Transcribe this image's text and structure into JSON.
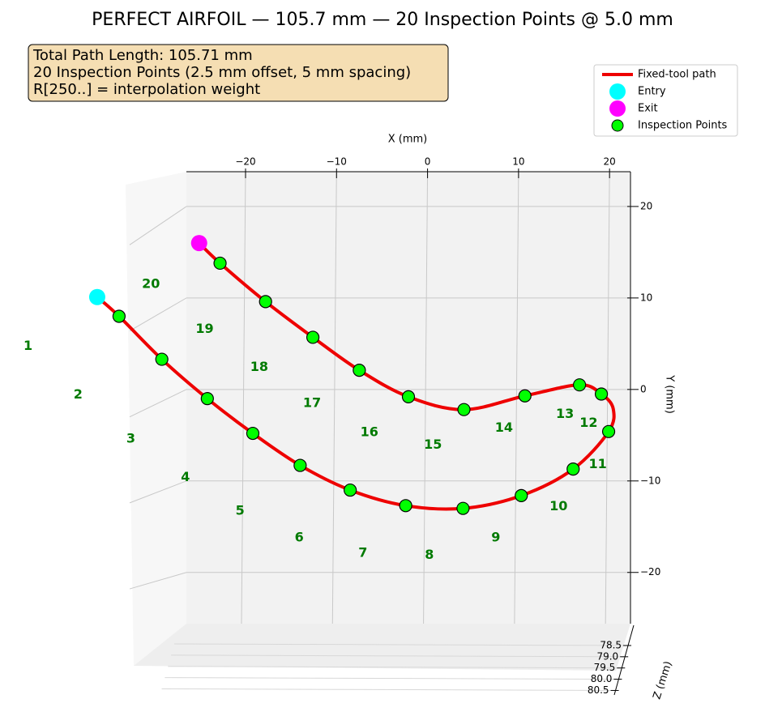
{
  "chart_data": {
    "type": "line3d",
    "title": "PERFECT AIRFOIL — 105.7 mm — 20 Inspection Points @ 5.0 mm",
    "annotation_lines": [
      "Total Path Length: 105.71 mm",
      "20 Inspection Points (2.5 mm offset, 5 mm spacing)",
      "R[250..] = interpolation weight"
    ],
    "xlabel": "X (mm)",
    "ylabel": "Y (mm)",
    "zlabel": "Z (mm)",
    "xlim": [
      -26.5,
      22.3
    ],
    "ylim": [
      -25.6,
      23.8
    ],
    "zlim": [
      77.6,
      80.7
    ],
    "xticks": [
      {
        "value": -20,
        "label": "−20"
      },
      {
        "value": -10,
        "label": "−10"
      },
      0,
      10,
      20
    ],
    "yticks": [
      {
        "value": -20,
        "label": "−20"
      },
      {
        "value": -10,
        "label": "−10"
      },
      0,
      10,
      20
    ],
    "zticks": [
      78.5,
      {
        "value": 79.0,
        "label": "79.0"
      },
      79.5,
      {
        "value": 80.0,
        "label": "80.0"
      },
      80.5
    ],
    "grid": true,
    "legend": "upper right",
    "series": [
      {
        "name": "Fixed-tool path",
        "color": "#ee0000",
        "x": [
          -36.3,
          -33.9,
          -29.2,
          -24.2,
          -19.2,
          -14.0,
          -8.5,
          -2.4,
          3.9,
          10.3,
          16.0,
          19.9,
          20.4,
          19.1,
          16.7,
          10.7,
          4.0,
          -2.1,
          -7.5,
          -12.6,
          -17.8,
          -22.8,
          -25.1
        ],
        "y": [
          10.1,
          8.0,
          3.3,
          -1.0,
          -4.8,
          -8.3,
          -11.0,
          -12.7,
          -13.0,
          -11.6,
          -8.7,
          -4.6,
          -2.1,
          -0.5,
          0.5,
          -0.7,
          -2.2,
          -0.8,
          2.1,
          5.7,
          9.6,
          13.8,
          16.0
        ]
      },
      {
        "name": "Entry",
        "color": "#00ffff",
        "x": [
          -36.3
        ],
        "y": [
          10.1
        ]
      },
      {
        "name": "Exit",
        "color": "#ff00ff",
        "x": [
          -25.1
        ],
        "y": [
          16.0
        ]
      },
      {
        "name": "Inspection Points",
        "color": "#00ff00",
        "label_color": "#007a00",
        "x": [
          -33.9,
          -29.2,
          -24.2,
          -19.2,
          -14.0,
          -8.5,
          -2.4,
          3.9,
          10.3,
          16.0,
          19.9,
          19.1,
          16.7,
          10.7,
          4.0,
          -2.1,
          -7.5,
          -12.6,
          -17.8,
          -22.8
        ],
        "y": [
          8.0,
          3.3,
          -1.0,
          -4.8,
          -8.3,
          -11.0,
          -12.7,
          -13.0,
          -11.6,
          -8.7,
          -4.6,
          -0.5,
          0.5,
          -0.7,
          -2.2,
          -0.8,
          2.1,
          5.7,
          9.6,
          13.8
        ],
        "labels": [
          "1",
          "2",
          "3",
          "4",
          "5",
          "6",
          "7",
          "8",
          "9",
          "10",
          "11",
          "12",
          "13",
          "14",
          "15",
          "16",
          "17",
          "18",
          "19",
          "20"
        ],
        "label_x": [
          -43.9,
          -38.4,
          -32.6,
          -26.6,
          -20.6,
          -14.1,
          -7.1,
          0.2,
          7.5,
          14.4,
          18.7,
          17.7,
          15.1,
          8.4,
          0.6,
          -6.4,
          -12.7,
          -18.5,
          -24.5,
          -30.4
        ],
        "label_y": [
          4.7,
          -0.6,
          -5.4,
          -9.6,
          -13.3,
          -16.2,
          -17.9,
          -18.1,
          -16.2,
          -12.8,
          -8.2,
          -3.7,
          -2.7,
          -4.2,
          -6.1,
          -4.7,
          -1.5,
          2.4,
          6.6,
          11.5
        ]
      }
    ]
  }
}
